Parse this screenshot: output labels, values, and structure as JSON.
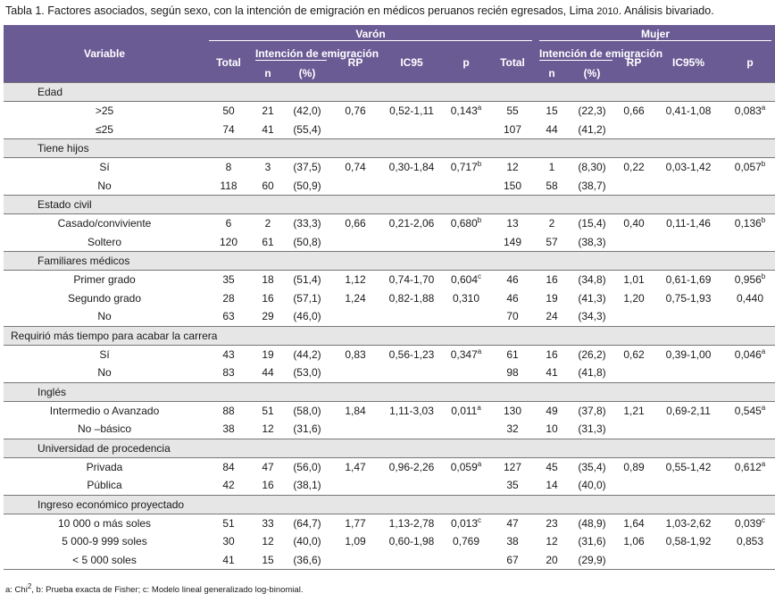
{
  "caption": {
    "text": "Tabla 1. Factores asociados, según sexo, con la intención de emigración en médicos peruanos recién egresados, Lima",
    "year": "2010",
    "tail": ". Análisis bivariado."
  },
  "header": {
    "variable": "Variable",
    "varon": "Varón",
    "mujer": "Mujer",
    "total": "Total",
    "intencion": "Intención de emigración",
    "n": "n",
    "pct": "(%)",
    "rp": "RP",
    "ic95": "IC95",
    "ic95pct": "IC95%",
    "p": "p"
  },
  "sections": [
    {
      "title": "Edad",
      "rows": [
        {
          "label": ">25",
          "vt": "50",
          "vn": "21",
          "vp": "(42,0)",
          "vrp": "0,76",
          "vic": "0,52-1,11",
          "vpv": "0,143",
          "vsup": "a",
          "mt": "55",
          "mn": "15",
          "mp": "(22,3)",
          "mrp": "0,66",
          "mic": "0,41-1,08",
          "mpv": "0,083",
          "msup": "a"
        },
        {
          "label": "≤25",
          "vt": "74",
          "vn": "41",
          "vp": "(55,4)",
          "vrp": "",
          "vic": "",
          "vpv": "",
          "vsup": "",
          "mt": "107",
          "mn": "44",
          "mp": "(41,2)",
          "mrp": "",
          "mic": "",
          "mpv": "",
          "msup": ""
        }
      ]
    },
    {
      "title": "Tiene hijos",
      "rows": [
        {
          "label": "Sí",
          "vt": "8",
          "vn": "3",
          "vp": "(37,5)",
          "vrp": "0,74",
          "vic": "0,30-1,84",
          "vpv": "0,717",
          "vsup": "b",
          "mt": "12",
          "mn": "1",
          "mp": "(8,30)",
          "mrp": "0,22",
          "mic": "0,03-1,42",
          "mpv": "0,057",
          "msup": "b"
        },
        {
          "label": "No",
          "vt": "118",
          "vn": "60",
          "vp": "(50,9)",
          "vrp": "",
          "vic": "",
          "vpv": "",
          "vsup": "",
          "mt": "150",
          "mn": "58",
          "mp": "(38,7)",
          "mrp": "",
          "mic": "",
          "mpv": "",
          "msup": ""
        }
      ]
    },
    {
      "title": "Estado civil",
      "rows": [
        {
          "label": "Casado/conviviente",
          "vt": "6",
          "vn": "2",
          "vp": "(33,3)",
          "vrp": "0,66",
          "vic": "0,21-2,06",
          "vpv": "0,680",
          "vsup": "b",
          "mt": "13",
          "mn": "2",
          "mp": "(15,4)",
          "mrp": "0,40",
          "mic": "0,11-1,46",
          "mpv": "0,136",
          "msup": "b"
        },
        {
          "label": "Soltero",
          "vt": "120",
          "vn": "61",
          "vp": "(50,8)",
          "vrp": "",
          "vic": "",
          "vpv": "",
          "vsup": "",
          "mt": "149",
          "mn": "57",
          "mp": "(38,3)",
          "mrp": "",
          "mic": "",
          "mpv": "",
          "msup": ""
        }
      ]
    },
    {
      "title": "Familiares médicos",
      "rows": [
        {
          "label": "Primer grado",
          "vt": "35",
          "vn": "18",
          "vp": "(51,4)",
          "vrp": "1,12",
          "vic": "0,74-1,70",
          "vpv": "0,604",
          "vsup": "c",
          "mt": "46",
          "mn": "16",
          "mp": "(34,8)",
          "mrp": "1,01",
          "mic": "0,61-1,69",
          "mpv": "0,956",
          "msup": "b"
        },
        {
          "label": "Segundo grado",
          "vt": "28",
          "vn": "16",
          "vp": "(57,1)",
          "vrp": "1,24",
          "vic": "0,82-1,88",
          "vpv": "0,310",
          "vsup": "",
          "mt": "46",
          "mn": "19",
          "mp": "(41,3)",
          "mrp": "1,20",
          "mic": "0,75-1,93",
          "mpv": "0,440",
          "msup": ""
        },
        {
          "label": "No",
          "vt": "63",
          "vn": "29",
          "vp": "(46,0)",
          "vrp": "",
          "vic": "",
          "vpv": "",
          "vsup": "",
          "mt": "70",
          "mn": "24",
          "mp": "(34,3)",
          "mrp": "",
          "mic": "",
          "mpv": "",
          "msup": ""
        }
      ]
    },
    {
      "title": "Requirió más tiempo para acabar la carrera",
      "wide": true,
      "rows": [
        {
          "label": "Sí",
          "vt": "43",
          "vn": "19",
          "vp": "(44,2)",
          "vrp": "0,83",
          "vic": "0,56-1,23",
          "vpv": "0,347",
          "vsup": "a",
          "mt": "61",
          "mn": "16",
          "mp": "(26,2)",
          "mrp": "0,62",
          "mic": "0,39-1,00",
          "mpv": "0,046",
          "msup": "a"
        },
        {
          "label": "No",
          "vt": "83",
          "vn": "44",
          "vp": "(53,0)",
          "vrp": "",
          "vic": "",
          "vpv": "",
          "vsup": "",
          "mt": "98",
          "mn": "41",
          "mp": "(41,8)",
          "mrp": "",
          "mic": "",
          "mpv": "",
          "msup": ""
        }
      ]
    },
    {
      "title": "Inglés",
      "rows": [
        {
          "label": "Intermedio o Avanzado",
          "vt": "88",
          "vn": "51",
          "vp": "(58,0)",
          "vrp": "1,84",
          "vic": "1,11-3,03",
          "vpv": "0,011",
          "vsup": "a",
          "mt": "130",
          "mn": "49",
          "mp": "(37,8)",
          "mrp": "1,21",
          "mic": "0,69-2,11",
          "mpv": "0,545",
          "msup": "a"
        },
        {
          "label": "No –básico",
          "vt": "38",
          "vn": "12",
          "vp": "(31,6)",
          "vrp": "",
          "vic": "",
          "vpv": "",
          "vsup": "",
          "mt": "32",
          "mn": "10",
          "mp": "(31,3)",
          "mrp": "",
          "mic": "",
          "mpv": "",
          "msup": ""
        }
      ]
    },
    {
      "title": "Universidad de procedencia",
      "rows": [
        {
          "label": "Privada",
          "vt": "84",
          "vn": "47",
          "vp": "(56,0)",
          "vrp": "1,47",
          "vic": "0,96-2,26",
          "vpv": "0,059",
          "vsup": "a",
          "mt": "127",
          "mn": "45",
          "mp": "(35,4)",
          "mrp": "0,89",
          "mic": "0,55-1,42",
          "mpv": "0,612",
          "msup": "a"
        },
        {
          "label": "Pública",
          "vt": "42",
          "vn": "16",
          "vp": "(38,1)",
          "vrp": "",
          "vic": "",
          "vpv": "",
          "vsup": "",
          "mt": "35",
          "mn": "14",
          "mp": "(40,0)",
          "mrp": "",
          "mic": "",
          "mpv": "",
          "msup": ""
        }
      ]
    },
    {
      "title": "Ingreso económico proyectado",
      "rows": [
        {
          "label": "10 000 o más soles",
          "vt": "51",
          "vn": "33",
          "vp": "(64,7)",
          "vrp": "1,77",
          "vic": "1,13-2,78",
          "vpv": "0,013",
          "vsup": "c",
          "mt": "47",
          "mn": "23",
          "mp": "(48,9)",
          "mrp": "1,64",
          "mic": "1,03-2,62",
          "mpv": "0,039",
          "msup": "c"
        },
        {
          "label": "5 000-9 999 soles",
          "vt": "30",
          "vn": "12",
          "vp": "(40,0)",
          "vrp": "1,09",
          "vic": "0,60-1,98",
          "vpv": "0,769",
          "vsup": "",
          "mt": "38",
          "mn": "12",
          "mp": "(31,6)",
          "mrp": "1,06",
          "mic": "0,58-1,92",
          "mpv": "0,853",
          "msup": ""
        },
        {
          "label": "< 5 000 soles",
          "vt": "41",
          "vn": "15",
          "vp": "(36,6)",
          "vrp": "",
          "vic": "",
          "vpv": "",
          "vsup": "",
          "mt": "67",
          "mn": "20",
          "mp": "(29,9)",
          "mrp": "",
          "mic": "",
          "mpv": "",
          "msup": ""
        }
      ]
    }
  ],
  "footnote": {
    "a": "a: Chi",
    "a_sup": "2",
    "rest": ", b: Prueba exacta de Fisher; c: Modelo lineal generalizado log-binomial."
  },
  "colors": {
    "header_bg": "#6b5b95",
    "section_bg": "#e6e6e6"
  }
}
